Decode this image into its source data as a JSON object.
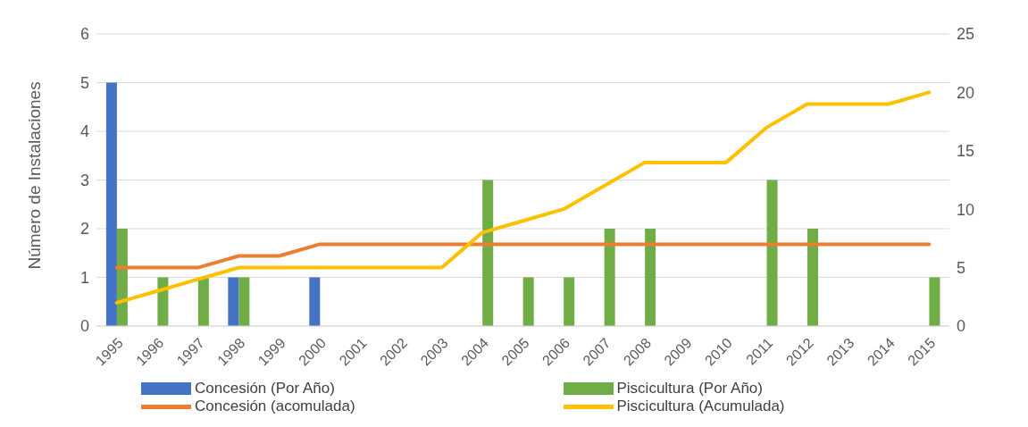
{
  "chart_data": {
    "type": "bar",
    "ylabel": "Número de Instalaciones",
    "categories": [
      "1995",
      "1996",
      "1997",
      "1998",
      "1999",
      "2000",
      "2001",
      "2002",
      "2003",
      "2004",
      "2005",
      "2006",
      "2007",
      "2008",
      "2009",
      "2010",
      "2011",
      "2012",
      "2013",
      "2014",
      "2015"
    ],
    "series": [
      {
        "name": "Concesión (Por Año)",
        "color": "#4472c4",
        "values": [
          5,
          0,
          0,
          1,
          0,
          1,
          0,
          0,
          0,
          0,
          0,
          0,
          0,
          0,
          0,
          0,
          0,
          0,
          0,
          0,
          0
        ]
      },
      {
        "name": "Piscicultura (Por Año)",
        "color": "#70ad47",
        "values": [
          2,
          1,
          1,
          1,
          0,
          0,
          0,
          0,
          0,
          3,
          1,
          1,
          2,
          2,
          0,
          0,
          3,
          2,
          0,
          0,
          1
        ]
      },
      {
        "name": "Concesión (acomulada)",
        "type": "line",
        "axis": "y2",
        "color": "#ed7d31",
        "values": [
          5,
          5,
          5,
          6,
          6,
          7,
          7,
          7,
          7,
          7,
          7,
          7,
          7,
          7,
          7,
          7,
          7,
          7,
          7,
          7,
          7
        ]
      },
      {
        "name": "Piscicultura (Acumulada)",
        "type": "line",
        "axis": "y2",
        "color": "#ffc000",
        "values": [
          2,
          3,
          4,
          5,
          5,
          5,
          5,
          5,
          5,
          8,
          9,
          10,
          12,
          14,
          14,
          14,
          17,
          19,
          19,
          19,
          20
        ]
      }
    ],
    "ylim": [
      0,
      6
    ],
    "yticks": [
      0,
      1,
      2,
      3,
      4,
      5,
      6
    ],
    "y2lim": [
      0,
      25
    ],
    "y2ticks": [
      0,
      5,
      10,
      15,
      20,
      25
    ],
    "grid": "y",
    "legend": "bottom",
    "marker": "none",
    "line_style": "solid"
  }
}
